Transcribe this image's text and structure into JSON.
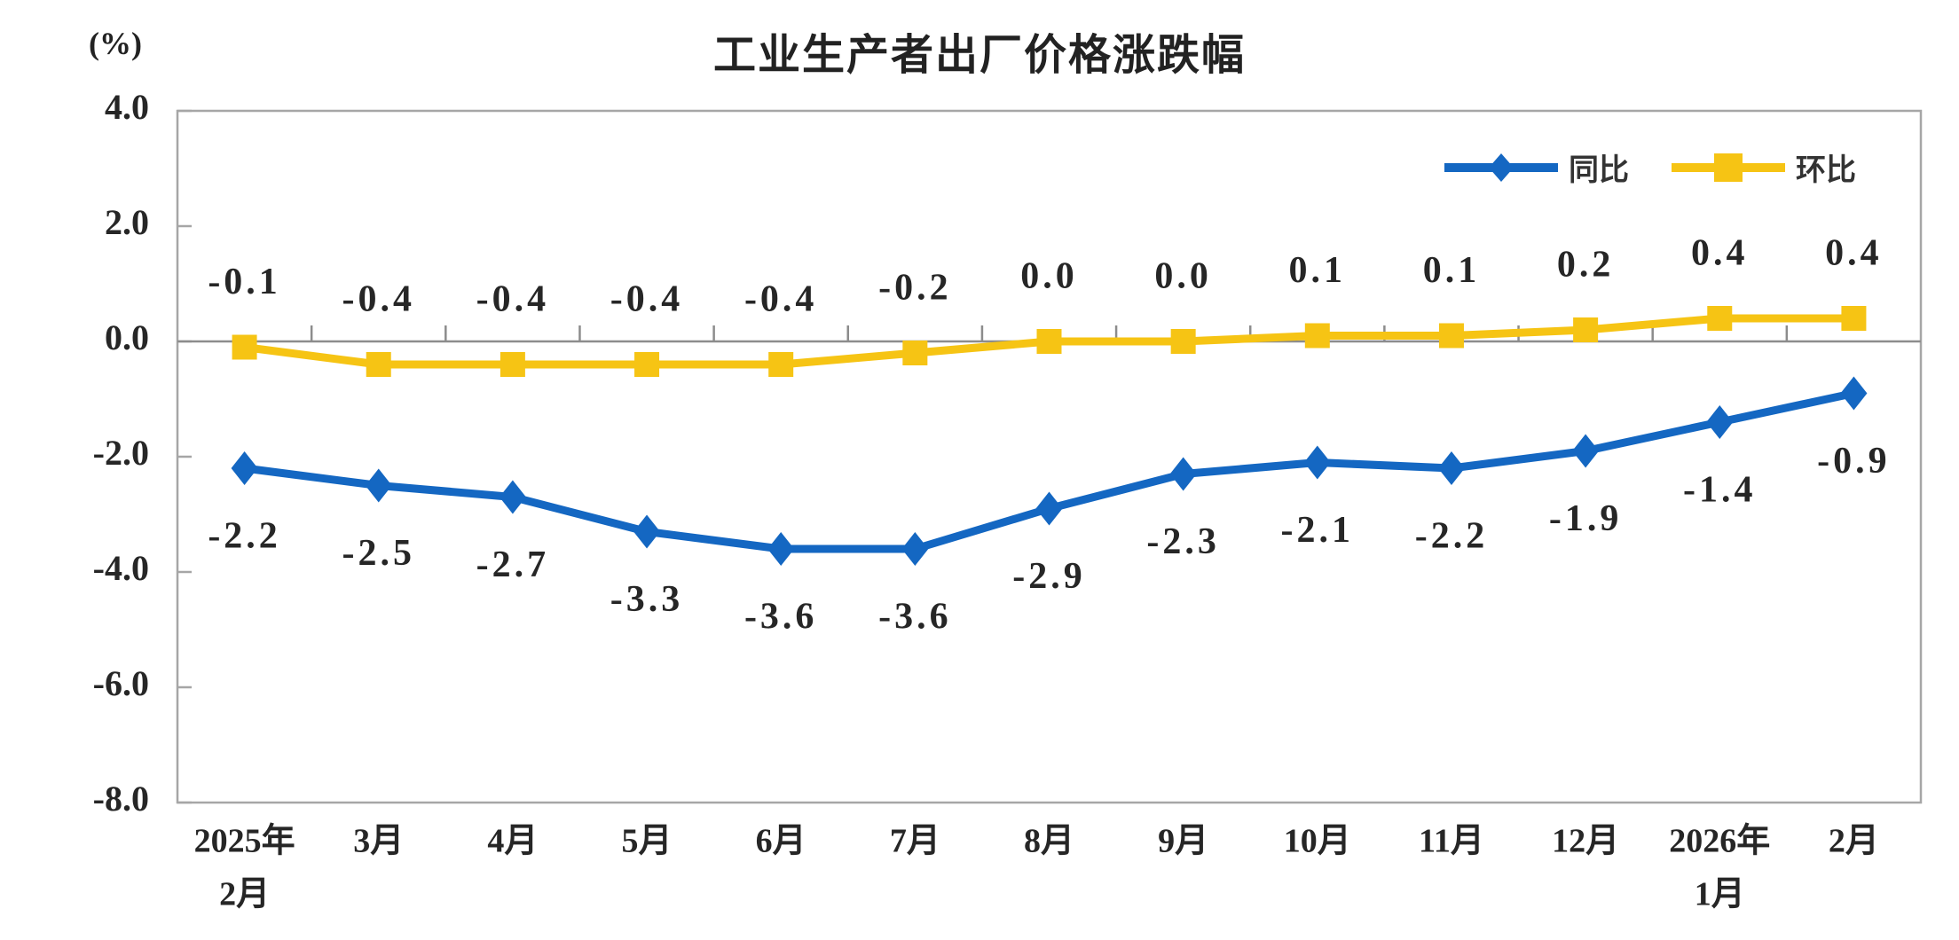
{
  "title": "工业生产者出厂价格涨跌幅",
  "unit_label": "(%)",
  "legend": [
    {
      "label": "同比",
      "color": "#1467C2",
      "marker": "diamond"
    },
    {
      "label": "环比",
      "color": "#F6C414",
      "marker": "square"
    }
  ],
  "colors": {
    "tongbi_blue": "#1467C2",
    "huanbi_yellow": "#F6C414",
    "frame_gray": "#A6A6A6",
    "zero_axis_gray": "#8C8C8C",
    "text_dark": "#262626"
  },
  "chart_data": {
    "type": "line",
    "title": "工业生产者出厂价格涨跌幅",
    "ylabel": "(%)",
    "xlabel": "",
    "ylim": [
      -8.0,
      4.0
    ],
    "ytick_step": 2.0,
    "ytick_labels": [
      "4.0",
      "2.0",
      "0.0",
      "-2.0",
      "-4.0",
      "-6.0",
      "-8.0"
    ],
    "grid": false,
    "legend_position": "top-right",
    "categories": [
      "2025年",
      "3月",
      "4月",
      "5月",
      "6月",
      "7月",
      "8月",
      "9月",
      "10月",
      "11月",
      "12月",
      "2026年",
      "2月"
    ],
    "categories_line2": [
      "2月",
      "",
      "",
      "",
      "",
      "",
      "",
      "",
      "",
      "",
      "",
      "1月",
      ""
    ],
    "series": [
      {
        "name": "同比",
        "color": "#1467C2",
        "marker": "diamond",
        "label_side": "below",
        "values": [
          -2.2,
          -2.5,
          -2.7,
          -3.3,
          -3.6,
          -3.6,
          -2.9,
          -2.3,
          -2.1,
          -2.2,
          -1.9,
          -1.4,
          -0.9
        ]
      },
      {
        "name": "环比",
        "color": "#F6C414",
        "marker": "square",
        "label_side": "above",
        "values": [
          -0.1,
          -0.4,
          -0.4,
          -0.4,
          -0.4,
          -0.2,
          0.0,
          0.0,
          0.1,
          0.1,
          0.2,
          0.4,
          0.4
        ]
      }
    ]
  }
}
